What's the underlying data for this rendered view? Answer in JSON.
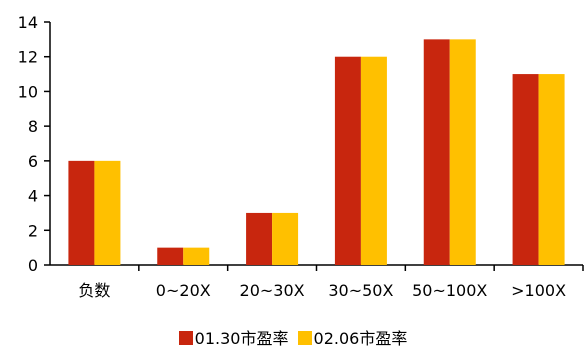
{
  "chart_data": {
    "type": "bar",
    "categories": [
      "负数",
      "0~20X",
      "20~30X",
      "30~50X",
      "50~100X",
      ">100X"
    ],
    "series": [
      {
        "name": "01.30市盈率",
        "color": "#c8260e",
        "values": [
          6,
          1,
          3,
          12,
          13,
          11
        ]
      },
      {
        "name": "02.06市盈率",
        "color": "#ffc000",
        "values": [
          6,
          1,
          3,
          12,
          13,
          11
        ]
      }
    ],
    "yticks": [
      "0",
      "2",
      "4",
      "6",
      "8",
      "10",
      "12",
      "14"
    ],
    "ylim": [
      0,
      14
    ],
    "legend_position": "bottom",
    "grid": false
  }
}
